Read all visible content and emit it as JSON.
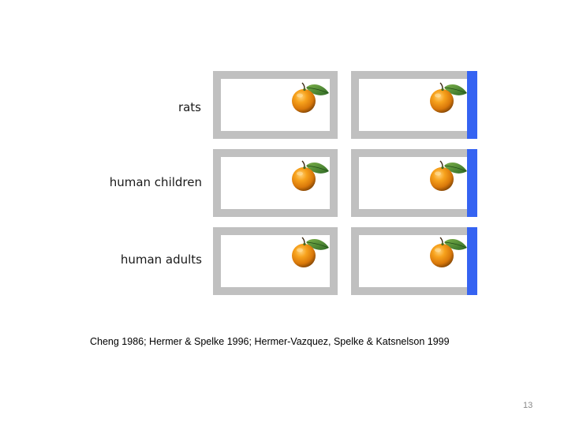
{
  "slide": {
    "rows": [
      {
        "label": "rats"
      },
      {
        "label": "human children"
      },
      {
        "label": "human adults"
      }
    ],
    "citation": "Cheng 1986; Hermer & Spelke 1996; Hermer-Vazquez, Spelke & Katsnelson 1999",
    "page_number": "13"
  },
  "icons": {
    "target": "orange-icon"
  },
  "colors": {
    "wall": "#c0c0c0",
    "landmark_wall": "#3563f2",
    "orange": "#f29a12"
  }
}
